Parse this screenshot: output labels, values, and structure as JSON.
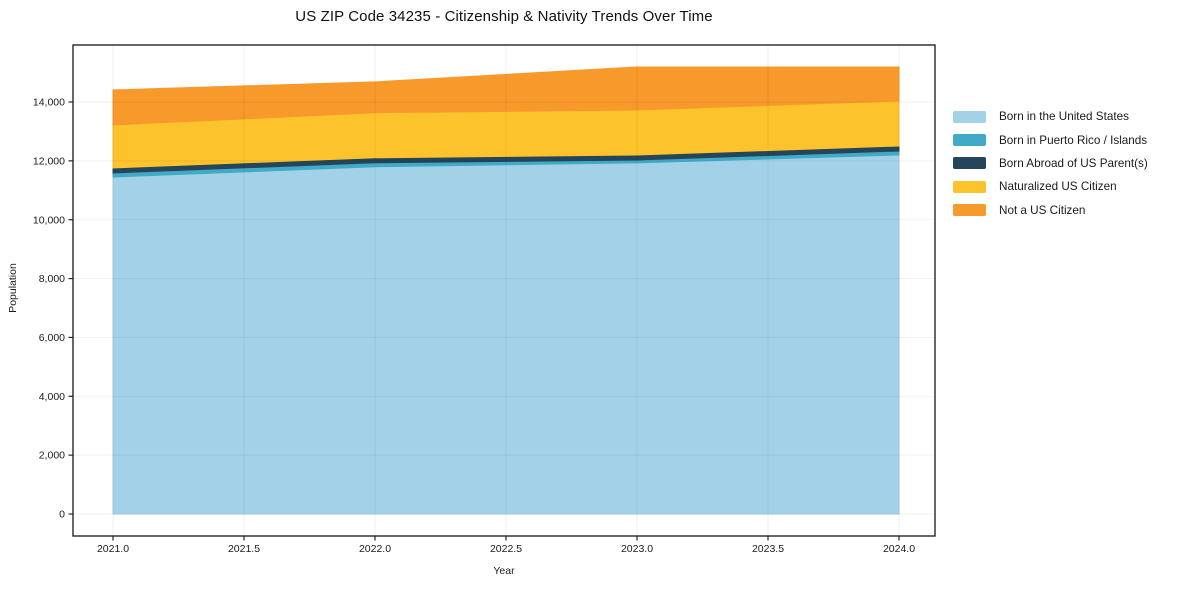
{
  "chart_data": {
    "type": "area",
    "stacked": true,
    "title": "US ZIP Code 34235 - Citizenship & Nativity Trends Over Time",
    "xlabel": "Year",
    "ylabel": "Population",
    "x": [
      2021,
      2022,
      2023,
      2024
    ],
    "series": [
      {
        "name": "Born in the United States",
        "color": "#a3d2e8",
        "values": [
          11450,
          11800,
          11930,
          12200
        ]
      },
      {
        "name": "Born in Puerto Rico / Islands",
        "color": "#41abc7",
        "values": [
          140,
          135,
          100,
          135
        ]
      },
      {
        "name": "Born Abroad of US Parent(s)",
        "color": "#24455a",
        "values": [
          170,
          170,
          170,
          170
        ]
      },
      {
        "name": "Naturalized US Citizen",
        "color": "#fcc32d",
        "values": [
          1460,
          1530,
          1530,
          1530
        ]
      },
      {
        "name": "Not a US Citizen",
        "color": "#f8992b",
        "values": [
          1190,
          1050,
          1460,
          1155
        ]
      }
    ],
    "stack_totals": [
      14410,
      14685,
      15190,
      15190
    ],
    "xticks": {
      "values": [
        2021.0,
        2021.5,
        2022.0,
        2022.5,
        2023.0,
        2023.5,
        2024.0
      ],
      "labels": [
        "2021.0",
        "2021.5",
        "2022.0",
        "2022.5",
        "2023.0",
        "2023.5",
        "2024.0"
      ]
    },
    "yticks": {
      "values": [
        0,
        2000,
        4000,
        6000,
        8000,
        10000,
        12000,
        14000
      ],
      "labels": [
        "0",
        "2,000",
        "4,000",
        "6,000",
        "8,000",
        "10,000",
        "12,000",
        "14,000"
      ]
    },
    "xlim": [
      2020.85,
      2024.14
    ],
    "ylim": [
      -750,
      15940
    ],
    "grid": true,
    "legend_position": "right-outside",
    "frame_color": "#262626",
    "grid_color": "rgba(0,0,0,0.06)"
  }
}
